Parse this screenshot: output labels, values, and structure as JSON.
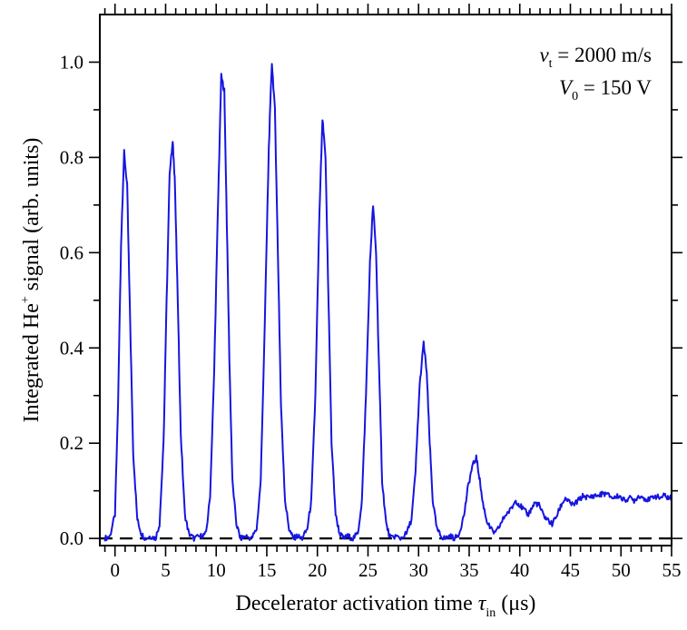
{
  "chart_data": {
    "type": "line",
    "xlabel": {
      "main": "Decelerator activation time ",
      "symbol": "τ",
      "subscript": "in",
      "unit": " (μs)"
    },
    "ylabel": {
      "before": "Integrated He",
      "superscript": "+",
      "after": " signal (arb. units)"
    },
    "xlim": [
      -1.5,
      55
    ],
    "ylim": [
      -0.015,
      1.1
    ],
    "x_ticks": [
      "0",
      "5",
      "10",
      "15",
      "20",
      "25",
      "30",
      "35",
      "40",
      "45",
      "50",
      "55"
    ],
    "y_ticks": [
      "0.0",
      "0.2",
      "0.4",
      "0.6",
      "0.8",
      "1.0"
    ],
    "annotations": [
      {
        "var": "v",
        "sub": "t",
        "text": " = 2000 m/s"
      },
      {
        "var": "V",
        "sub": "0",
        "text": " = 150 V"
      }
    ],
    "baseline": {
      "y": 0,
      "style": "dashed",
      "color": "#000000"
    },
    "series": [
      {
        "color": "#1515e0",
        "x": [
          -1,
          -0.5,
          0,
          0.3,
          0.6,
          0.9,
          1.2,
          1.5,
          1.8,
          2.2,
          2.6,
          3.0,
          3.5,
          4.0,
          4.4,
          4.8,
          5.1,
          5.4,
          5.7,
          5.9,
          6.2,
          6.5,
          6.9,
          7.3,
          7.8,
          8.5,
          9.0,
          9.4,
          9.8,
          10.2,
          10.5,
          10.8,
          11.0,
          11.3,
          11.6,
          12.0,
          12.4,
          12.9,
          13.5,
          14.0,
          14.4,
          14.8,
          15.2,
          15.5,
          15.8,
          16.1,
          16.4,
          16.8,
          17.2,
          17.6,
          18.0,
          18.5,
          19.0,
          19.4,
          19.8,
          20.2,
          20.5,
          20.8,
          21.1,
          21.4,
          21.8,
          22.2,
          22.6,
          23.0,
          23.5,
          24.0,
          24.4,
          24.8,
          25.2,
          25.5,
          25.8,
          26.1,
          26.4,
          26.8,
          27.2,
          27.7,
          28.2,
          28.8,
          29.3,
          29.7,
          30.1,
          30.5,
          30.8,
          31.1,
          31.4,
          31.8,
          32.2,
          32.6,
          33.1,
          33.6,
          34.0,
          34.5,
          34.9,
          35.3,
          35.7,
          36.0,
          36.3,
          36.7,
          37.1,
          37.6,
          38.1,
          38.6,
          39.1,
          39.6,
          40.0,
          40.4,
          40.8,
          41.1,
          41.5,
          41.9,
          42.3,
          42.7,
          43.2,
          43.7,
          44.1,
          44.5,
          44.9,
          45.3,
          45.8,
          46.3,
          46.8,
          47.3,
          47.8,
          48.3,
          48.8,
          49.3,
          49.8,
          50.3,
          50.8,
          51.3,
          51.8,
          52.3,
          52.8,
          53.3,
          53.8,
          54.3,
          54.7,
          55
        ],
        "y": [
          0.0,
          0.005,
          0.05,
          0.28,
          0.62,
          0.81,
          0.74,
          0.45,
          0.18,
          0.04,
          0.01,
          0.0,
          0.005,
          0.0,
          0.03,
          0.2,
          0.5,
          0.77,
          0.83,
          0.76,
          0.5,
          0.22,
          0.05,
          0.01,
          0.0,
          0.005,
          0.01,
          0.09,
          0.35,
          0.72,
          0.97,
          0.94,
          0.72,
          0.38,
          0.12,
          0.03,
          0.0,
          0.005,
          0.0,
          0.02,
          0.12,
          0.45,
          0.82,
          1.0,
          0.9,
          0.6,
          0.28,
          0.08,
          0.02,
          0.0,
          0.005,
          0.0,
          0.02,
          0.08,
          0.3,
          0.68,
          0.88,
          0.8,
          0.5,
          0.2,
          0.05,
          0.01,
          0.0,
          0.005,
          0.0,
          0.01,
          0.08,
          0.3,
          0.58,
          0.7,
          0.6,
          0.35,
          0.12,
          0.03,
          0.0,
          0.005,
          0.0,
          0.01,
          0.04,
          0.14,
          0.32,
          0.41,
          0.35,
          0.2,
          0.08,
          0.02,
          0.005,
          0.0,
          0.005,
          0.0,
          0.01,
          0.05,
          0.11,
          0.15,
          0.17,
          0.13,
          0.08,
          0.04,
          0.02,
          0.01,
          0.03,
          0.05,
          0.06,
          0.08,
          0.07,
          0.06,
          0.05,
          0.06,
          0.075,
          0.07,
          0.05,
          0.04,
          0.03,
          0.05,
          0.07,
          0.085,
          0.075,
          0.07,
          0.08,
          0.09,
          0.085,
          0.09,
          0.09,
          0.095,
          0.09,
          0.085,
          0.09,
          0.08,
          0.085,
          0.08,
          0.09,
          0.085,
          0.08,
          0.09,
          0.085,
          0.09,
          0.085,
          0.085
        ]
      }
    ]
  }
}
